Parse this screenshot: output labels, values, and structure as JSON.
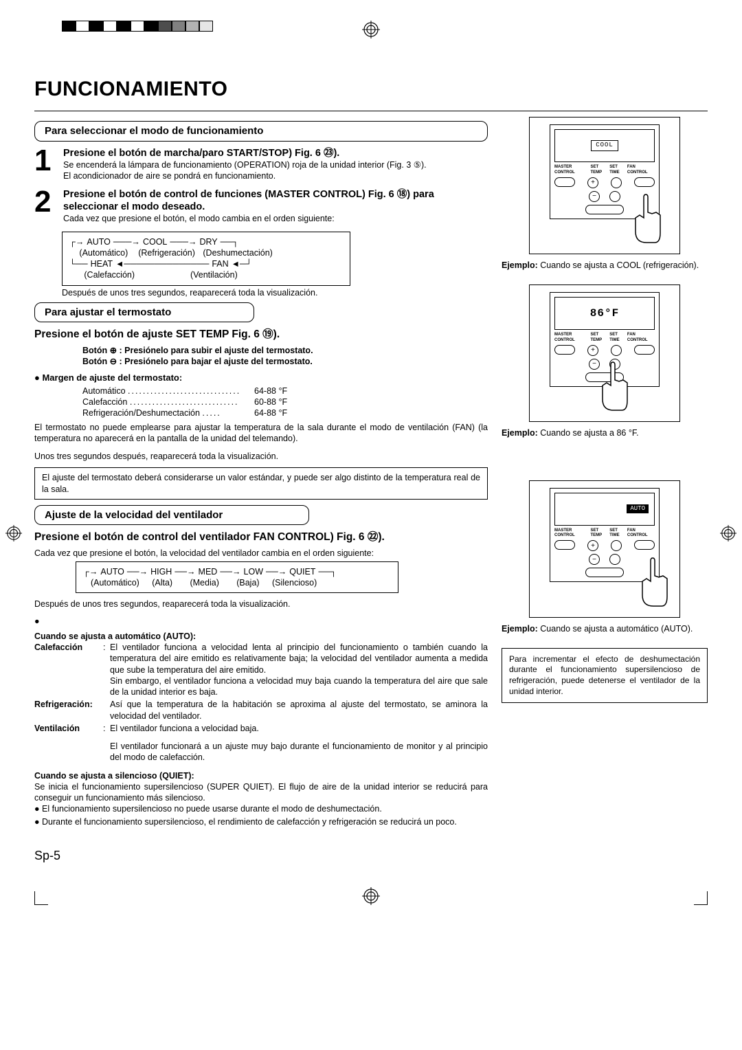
{
  "registration_colors_left": [
    "#000000",
    "#ffffff",
    "#000000",
    "#ffffff",
    "#000000",
    "#ffffff",
    "#000000",
    "#4d4d4d",
    "#808080",
    "#b3b3b3",
    "#e6e6e6"
  ],
  "registration_colors_right": [
    "#00aeef",
    "#ec008c",
    "#fff200",
    "#000000",
    "#ed1c24",
    "#00a651",
    "#2e3192"
  ],
  "title": "FUNCIONAMIENTO",
  "sec1_title": "Para seleccionar el modo de funcionamiento",
  "step1_num": "1",
  "step1_head": "Presione el botón de marcha/paro START/STOP) Fig. 6 ㉓).",
  "step1_l1": "Se encenderá la lámpara de funcionamiento (OPERATION) roja de la unidad interior (Fig. 3 ⑤).",
  "step1_l2": "El acondicionador de aire se pondrá en funcionamiento.",
  "step2_num": "2",
  "step2_head": "Presione el botón de control de funciones (MASTER CONTROL) Fig. 6 ⑱) para seleccionar el modo deseado.",
  "step2_l1": "Cada vez que presione el botón, el modo cambia en el orden siguiente:",
  "modes": {
    "auto": "AUTO",
    "auto_tr": "(Automático)",
    "cool": "COOL",
    "cool_tr": "(Refrigeración)",
    "dry": "DRY",
    "dry_tr": "(Deshumectación)",
    "heat": "HEAT",
    "heat_tr": "(Calefacción)",
    "fan": "FAN",
    "fan_tr": "(Ventilación)"
  },
  "step2_l2": "Después de unos tres segundos, reaparecerá toda la visualización.",
  "sec2_title": "Para ajustar el termostato",
  "sec2_head": "Presione el botón de ajuste SET TEMP Fig. 6 ⑲).",
  "sec2_btn_plus": "Botón ⊕ : Presiónelo para subir el ajuste del termostato.",
  "sec2_btn_minus": "Botón ⊖ : Presiónelo para bajar el ajuste del termostato.",
  "range_title": "Margen de ajuste del termostato:",
  "range1_label": "Automático",
  "range1_val": "64-88 °F",
  "range2_label": "Calefacción",
  "range2_val": "60-88 °F",
  "range3_label": "Refrigeración/Deshumectación",
  "range3_val": "64-88 °F",
  "therm_note1": "El termostato no puede emplearse para ajustar la temperatura de la sala durante el modo de ventilación (FAN) (la temperatura no aparecerá en la pantalla de la unidad del telemando).",
  "therm_note2": "Unos tres segundos después, reaparecerá toda la visualización.",
  "therm_box": "El ajuste del termostato deberá considerarse un valor estándar, y puede ser algo distinto de la temperatura real de la sala.",
  "sec3_title": "Ajuste de la velocidad del ventilador",
  "sec3_head": "Presione el botón de control del ventilador FAN CONTROL) Fig. 6 ㉒).",
  "sec3_l1": "Cada vez que presione el botón, la velocidad del ventilador cambia en el orden siguiente:",
  "fan": {
    "auto": "AUTO",
    "auto_tr": "(Automático)",
    "high": "HIGH",
    "high_tr": "(Alta)",
    "med": "MED",
    "med_tr": "(Media)",
    "low": "LOW",
    "low_tr": "(Baja)",
    "quiet": "QUIET",
    "quiet_tr": "(Silencioso)"
  },
  "sec3_l2": "Después de unos tres segundos, reaparecerá toda la visualización.",
  "auto_title": "Cuando se ajusta a automático (AUTO):",
  "auto_heat_label": "Calefacción",
  "auto_heat_text": "El ventilador funciona a velocidad lenta al principio del funcionamiento o también cuando la temperatura del aire emitido es relativamente baja; la velocidad del ventilador aumenta a medida que sube la temperatura del aire emitido.\nSin embargo, el ventilador funciona a velocidad muy baja cuando la temperatura del aire que sale de la unidad interior es baja.",
  "auto_cool_label": "Refrigeración:",
  "auto_cool_text": "Así que la temperatura de la habitación se aproxima al ajuste del termostato, se aminora la velocidad del ventilador.",
  "auto_fan_label": "Ventilación",
  "auto_fan_text": "El ventilador funciona a velocidad baja.",
  "auto_tail": "El ventilador funcionará a un ajuste muy bajo durante el funcionamiento de monitor y al principio del modo de calefacción.",
  "quiet_title": "Cuando se ajusta a silencioso (QUIET):",
  "quiet_l1": "Se inicia el funcionamiento supersilencioso (SUPER QUIET). El flujo de aire de la unidad interior se reducirá para conseguir un funcionamiento más silencioso.",
  "quiet_b1": "El funcionamiento supersilencioso no puede usarse durante el modo de deshumectación.",
  "quiet_b2": "Durante el funcionamiento supersilencioso, el rendimiento de calefacción y refrigeración se reducirá un poco.",
  "fig1_lcd": "COOL",
  "fig_labels": {
    "master": "MASTER CONTROL",
    "settemp": "SET TEMP",
    "settime": "SET TIME",
    "fan": "FAN CONTROL"
  },
  "fig1_caption_b": "Ejemplo:",
  "fig1_caption": " Cuando se ajusta a COOL (refrigeración).",
  "fig2_lcd": "86°F",
  "fig2_caption_b": "Ejemplo:",
  "fig2_caption": " Cuando se ajusta a 86 °F.",
  "fig3_lcd": "AUTO",
  "fig3_caption_b": "Ejemplo:",
  "fig3_caption": " Cuando se ajusta a automático (AUTO).",
  "side_info": "Para incrementar el efecto de deshumectación durante el funcionamiento supersilencioso de refrigeración, puede detenerse el ventilador de la unidad interior.",
  "page": "Sp-5"
}
